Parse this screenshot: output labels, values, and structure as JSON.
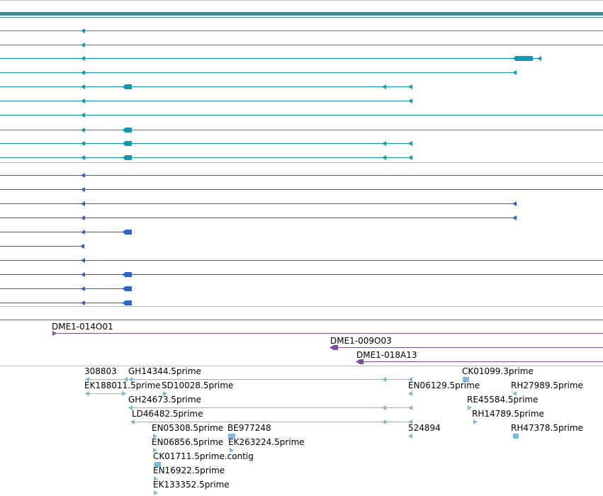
{
  "colors": {
    "track_band": "#3b8e94",
    "transcript_teal": "#0e9ab5",
    "transcript_blue": "#2f64c8",
    "clone_purple": "#7b4ea3",
    "est_light": "#7fb8dd",
    "separator": "#bdbdbd"
  },
  "clone_labels": [
    "DME1-014O01",
    "DME1-009O03",
    "DME1-018A13"
  ],
  "est_labels": [
    "308803",
    "GH14344.5prime",
    "CK01099.3prime",
    "EK188011.5prime",
    "SD10028.5prime",
    "EN06129.5prime",
    "RH27989.5prime",
    "GH24673.5prime",
    "RE45584.5prime",
    "LD46482.5prime",
    "RH14789.5prime",
    "EN05308.5prime",
    "BE977248",
    "524894",
    "RH47378.5prime",
    "EN06856.5prime",
    "EK263224.5prime",
    "CK01711.5prime.contig",
    "EN16922.5prime",
    "EK133352.5prime"
  ]
}
